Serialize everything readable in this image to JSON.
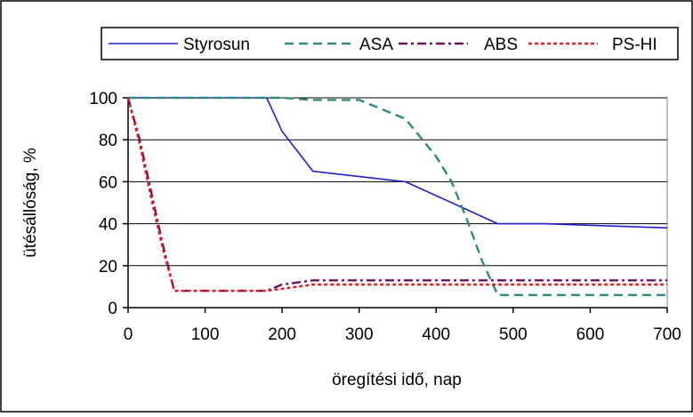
{
  "chart_data": {
    "type": "line",
    "title": "",
    "xlabel": "öregítési idő, nap",
    "ylabel": "ütésállóság, %",
    "xlim": [
      0,
      700
    ],
    "ylim": [
      0,
      100
    ],
    "xticks": [
      0,
      100,
      200,
      300,
      400,
      500,
      600,
      700
    ],
    "yticks": [
      0,
      20,
      40,
      60,
      80,
      100
    ],
    "xtick_labels": [
      "0",
      "100",
      "200",
      "300",
      "400",
      "500",
      "600",
      "700"
    ],
    "ytick_labels": [
      "0",
      "20",
      "40",
      "60",
      "80",
      "100"
    ],
    "grid": "horizontal",
    "legend_position": "top",
    "series": [
      {
        "name": "Styrosun",
        "color": "#1f1fcc",
        "dash": "solid",
        "x": [
          0,
          180,
          200,
          240,
          360,
          480,
          540,
          700
        ],
        "y": [
          100,
          100,
          84,
          65,
          60,
          40,
          40,
          38
        ]
      },
      {
        "name": "ASA",
        "color": "#2e8b7a",
        "dash": "dash",
        "x": [
          0,
          200,
          240,
          300,
          360,
          400,
          420,
          440,
          460,
          480,
          700
        ],
        "y": [
          100,
          100,
          99,
          99,
          90,
          72,
          60,
          42,
          22,
          6,
          6
        ]
      },
      {
        "name": "ABS",
        "color": "#6b1060",
        "dash": "dashdot",
        "x": [
          0,
          15,
          30,
          45,
          60,
          100,
          180,
          200,
          240,
          700
        ],
        "y": [
          100,
          80,
          55,
          30,
          8,
          8,
          8,
          11,
          13,
          13
        ]
      },
      {
        "name": "PS-HI",
        "color": "#e02020",
        "dash": "dot",
        "x": [
          0,
          15,
          30,
          45,
          60,
          100,
          180,
          200,
          240,
          700
        ],
        "y": [
          100,
          78,
          52,
          28,
          8,
          8,
          8,
          9,
          11,
          11
        ]
      }
    ]
  }
}
